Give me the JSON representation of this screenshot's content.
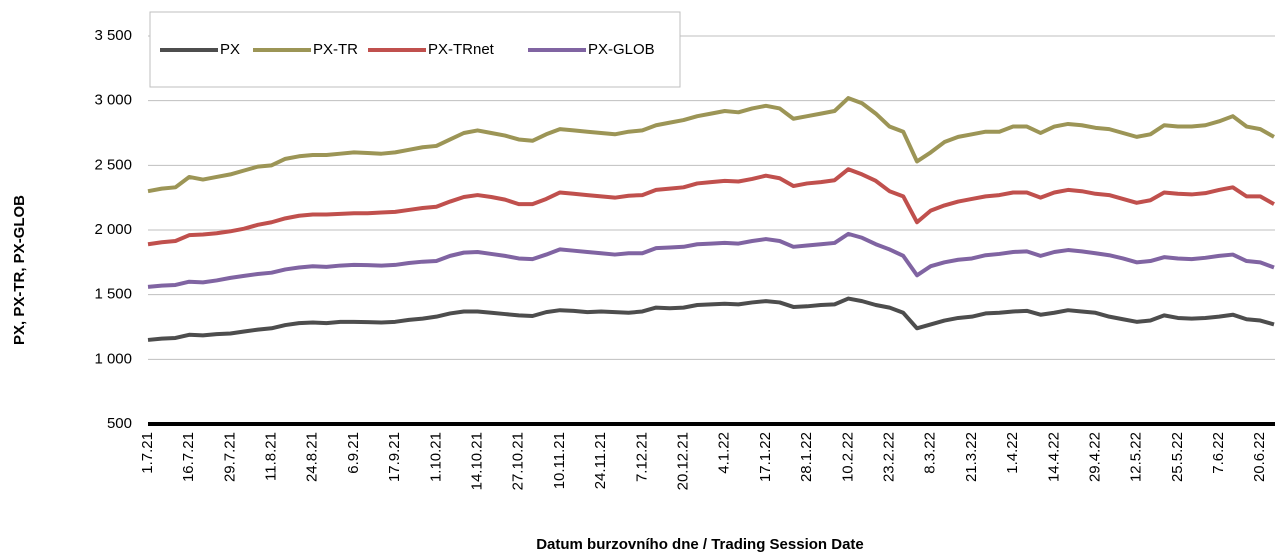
{
  "chart_data": {
    "type": "line",
    "y_axis_label": "PX, PX-TR, PX-GLOB",
    "x_axis_label": "Datum burzovního dne / Trading Session Date",
    "categories": [
      "1.7.21",
      null,
      null,
      "16.7.21",
      null,
      null,
      "29.7.21",
      null,
      null,
      "11.8.21",
      null,
      null,
      "24.8.21",
      null,
      null,
      "6.9.21",
      null,
      null,
      "17.9.21",
      null,
      null,
      "1.10.21",
      null,
      null,
      "14.10.21",
      null,
      null,
      "27.10.21",
      null,
      null,
      "10.11.21",
      null,
      null,
      "24.11.21",
      null,
      null,
      "7.12.21",
      null,
      null,
      "20.12.21",
      null,
      null,
      "4.1.22",
      null,
      null,
      "17.1.22",
      null,
      null,
      "28.1.22",
      null,
      null,
      "10.2.22",
      null,
      null,
      "23.2.22",
      null,
      null,
      "8.3.22",
      null,
      null,
      "21.3.22",
      null,
      null,
      "1.4.22",
      null,
      null,
      "14.4.22",
      null,
      null,
      "29.4.22",
      null,
      null,
      "12.5.22",
      null,
      null,
      "25.5.22",
      null,
      null,
      "7.6.22",
      null,
      null,
      "20.6.22",
      null
    ],
    "series": [
      {
        "name": "PX",
        "color": "#4d4d4d",
        "values": [
          1150,
          1160,
          1165,
          1190,
          1185,
          1195,
          1200,
          1215,
          1230,
          1240,
          1265,
          1280,
          1285,
          1280,
          1290,
          1290,
          1288,
          1285,
          1290,
          1305,
          1315,
          1330,
          1355,
          1370,
          1370,
          1360,
          1350,
          1340,
          1335,
          1365,
          1380,
          1375,
          1365,
          1370,
          1365,
          1360,
          1370,
          1400,
          1395,
          1400,
          1420,
          1425,
          1430,
          1425,
          1440,
          1450,
          1440,
          1405,
          1410,
          1420,
          1425,
          1470,
          1450,
          1420,
          1400,
          1360,
          1240,
          1270,
          1300,
          1320,
          1330,
          1355,
          1360,
          1370,
          1375,
          1345,
          1360,
          1380,
          1370,
          1360,
          1330,
          1310,
          1290,
          1300,
          1340,
          1320,
          1315,
          1320,
          1330,
          1345,
          1310,
          1300,
          1270
        ]
      },
      {
        "name": "PX-TR",
        "color": "#9c9556",
        "values": [
          2300,
          2320,
          2330,
          2410,
          2390,
          2410,
          2430,
          2460,
          2490,
          2500,
          2550,
          2570,
          2580,
          2580,
          2590,
          2600,
          2595,
          2590,
          2600,
          2620,
          2640,
          2650,
          2700,
          2750,
          2770,
          2750,
          2730,
          2700,
          2690,
          2740,
          2780,
          2770,
          2760,
          2750,
          2740,
          2760,
          2770,
          2810,
          2830,
          2850,
          2880,
          2900,
          2920,
          2910,
          2940,
          2960,
          2940,
          2860,
          2880,
          2900,
          2920,
          3020,
          2980,
          2900,
          2800,
          2760,
          2530,
          2600,
          2680,
          2720,
          2740,
          2760,
          2760,
          2800,
          2800,
          2750,
          2800,
          2820,
          2810,
          2790,
          2780,
          2750,
          2720,
          2740,
          2810,
          2800,
          2800,
          2810,
          2840,
          2880,
          2800,
          2780,
          2720
        ]
      },
      {
        "name": "PX-TRnet",
        "color": "#c0504d",
        "values": [
          1890,
          1905,
          1915,
          1960,
          1965,
          1975,
          1990,
          2010,
          2040,
          2060,
          2090,
          2110,
          2120,
          2120,
          2125,
          2130,
          2130,
          2135,
          2140,
          2155,
          2170,
          2180,
          2220,
          2255,
          2270,
          2255,
          2235,
          2200,
          2200,
          2240,
          2290,
          2280,
          2270,
          2260,
          2250,
          2265,
          2270,
          2310,
          2320,
          2330,
          2360,
          2370,
          2380,
          2375,
          2395,
          2420,
          2400,
          2340,
          2360,
          2370,
          2385,
          2470,
          2430,
          2380,
          2300,
          2260,
          2060,
          2150,
          2190,
          2220,
          2240,
          2260,
          2270,
          2290,
          2290,
          2250,
          2290,
          2310,
          2300,
          2280,
          2270,
          2240,
          2210,
          2230,
          2290,
          2280,
          2275,
          2285,
          2310,
          2330,
          2260,
          2260,
          2200
        ]
      },
      {
        "name": "PX-GLOB",
        "color": "#8064a2",
        "values": [
          1560,
          1570,
          1575,
          1600,
          1595,
          1610,
          1630,
          1645,
          1660,
          1670,
          1695,
          1710,
          1720,
          1715,
          1725,
          1730,
          1728,
          1725,
          1730,
          1745,
          1755,
          1760,
          1800,
          1825,
          1830,
          1815,
          1800,
          1780,
          1775,
          1810,
          1850,
          1840,
          1830,
          1820,
          1810,
          1820,
          1820,
          1860,
          1865,
          1870,
          1890,
          1895,
          1900,
          1895,
          1915,
          1930,
          1915,
          1870,
          1880,
          1890,
          1900,
          1970,
          1940,
          1890,
          1850,
          1800,
          1650,
          1720,
          1750,
          1770,
          1780,
          1805,
          1815,
          1830,
          1835,
          1800,
          1830,
          1845,
          1835,
          1820,
          1805,
          1780,
          1750,
          1760,
          1790,
          1780,
          1775,
          1785,
          1800,
          1810,
          1760,
          1750,
          1710
        ]
      }
    ],
    "ylim": [
      500,
      3500
    ],
    "yticks": [
      {
        "value": 500,
        "label": "500"
      },
      {
        "value": 1000,
        "label": "1 000"
      },
      {
        "value": 1500,
        "label": "1 500"
      },
      {
        "value": 2000,
        "label": "2 000"
      },
      {
        "value": 2500,
        "label": "2 500"
      },
      {
        "value": 3000,
        "label": "3 000"
      },
      {
        "value": 3500,
        "label": "3 500"
      }
    ],
    "grid": true,
    "legend": "top-left"
  }
}
